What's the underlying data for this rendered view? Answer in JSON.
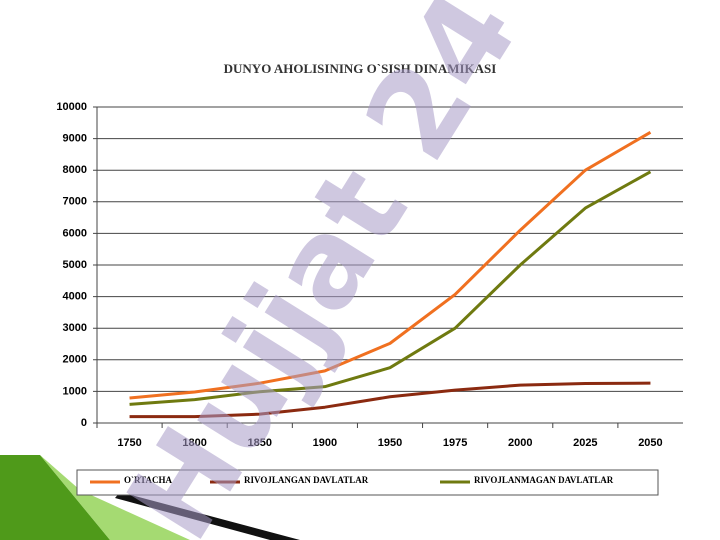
{
  "chart_data": {
    "type": "line",
    "title": "DUNYO AHOLISINING O`SISH DINAMIKASI",
    "categories": [
      "1750",
      "1800",
      "1850",
      "1900",
      "1950",
      "1975",
      "2000",
      "2025",
      "2050"
    ],
    "series": [
      {
        "name": "O`RTACHA",
        "color": "#f07020",
        "values": [
          790,
          980,
          1260,
          1650,
          2520,
          4070,
          6100,
          8000,
          9200
        ]
      },
      {
        "name": "RIVOJLANGAN DAVLATLAR",
        "color": "#8b2a10",
        "values": [
          200,
          200,
          280,
          500,
          830,
          1040,
          1200,
          1250,
          1260
        ]
      },
      {
        "name": "RIVOJLANMAGAN DAVLATLAR",
        "color": "#6f7a10",
        "values": [
          590,
          740,
          990,
          1150,
          1750,
          3000,
          5000,
          6800,
          7950
        ]
      }
    ],
    "ylim": [
      0,
      10000
    ],
    "yticks": [
      0,
      1000,
      2000,
      3000,
      4000,
      5000,
      6000,
      7000,
      8000,
      9000,
      10000
    ],
    "grid": true
  },
  "watermark": "Hujjat 24"
}
